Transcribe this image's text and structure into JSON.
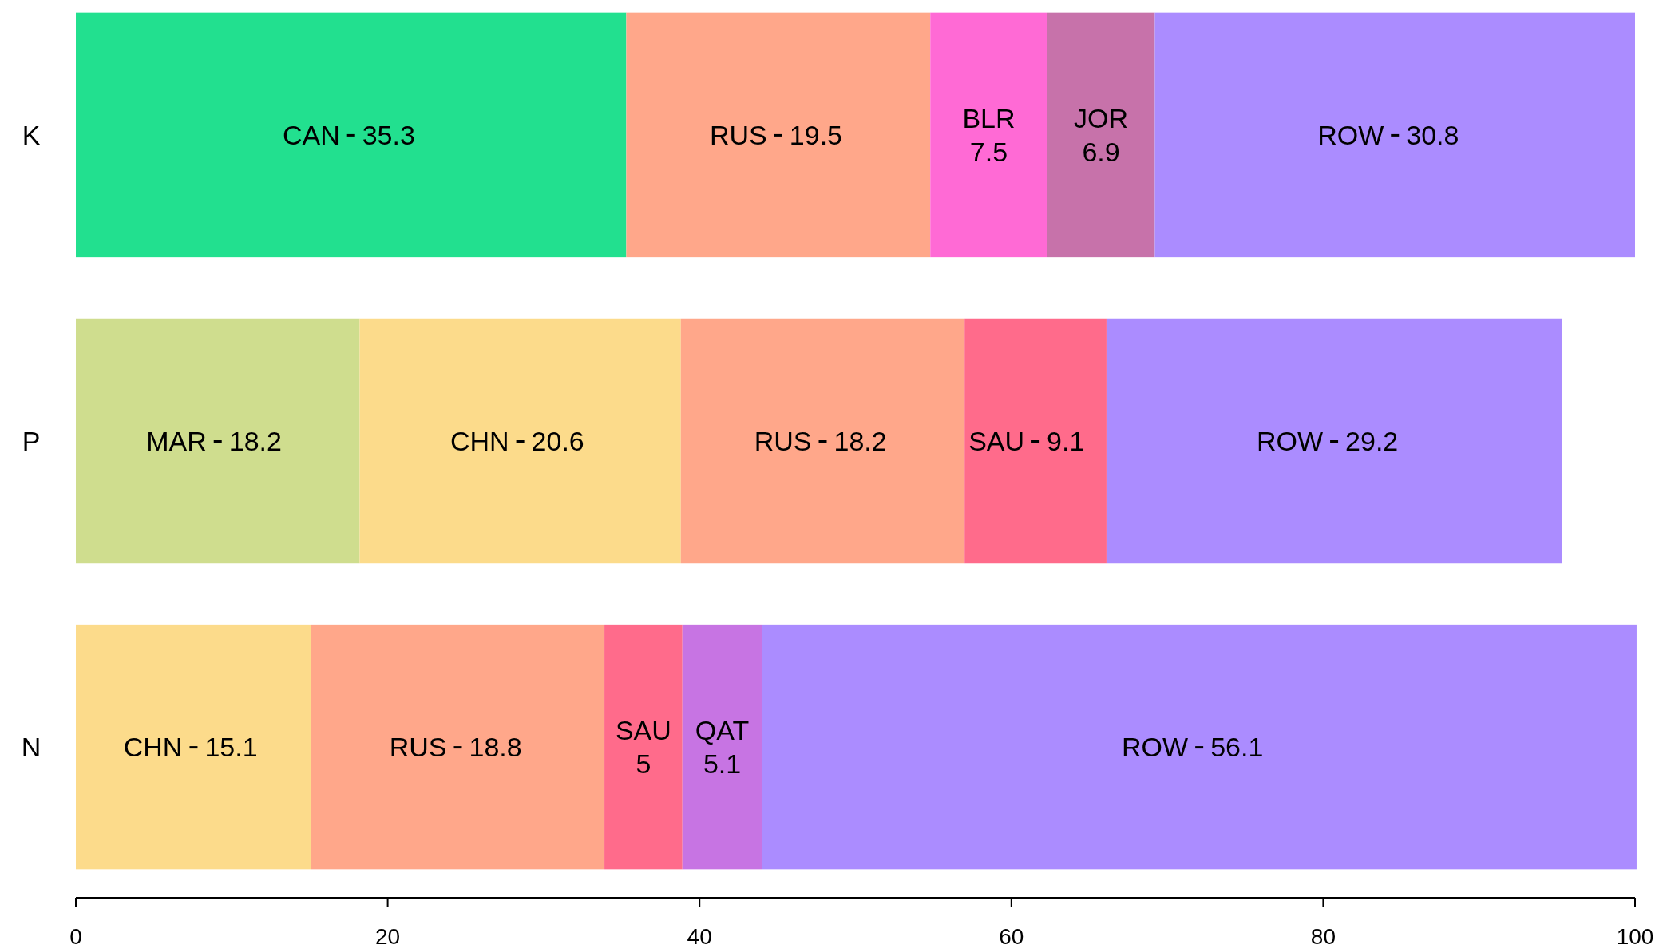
{
  "chart_data": {
    "type": "bar",
    "orientation": "horizontal",
    "stacked": true,
    "data_labels": true,
    "categories": [
      "K",
      "P",
      "N"
    ],
    "series": [
      {
        "name": "CAN",
        "color": "#22e08f",
        "values": [
          35.3,
          null,
          null
        ]
      },
      {
        "name": "MAR",
        "color": "#cfdd8e",
        "values": [
          null,
          18.2,
          null
        ]
      },
      {
        "name": "CHN",
        "color": "#fcdb8b",
        "values": [
          null,
          20.6,
          15.1
        ]
      },
      {
        "name": "RUS",
        "color": "#ffa78a",
        "values": [
          19.5,
          18.2,
          18.8
        ]
      },
      {
        "name": "BLR",
        "color": "#ff6ad5",
        "values": [
          7.5,
          null,
          null
        ]
      },
      {
        "name": "JOR",
        "color": "#c772aa",
        "values": [
          6.9,
          null,
          null
        ]
      },
      {
        "name": "SAU",
        "color": "#ff6b8b",
        "values": [
          null,
          9.1,
          5
        ]
      },
      {
        "name": "QAT",
        "color": "#c774e3",
        "values": [
          null,
          null,
          5.1
        ]
      },
      {
        "name": "ROW",
        "color": "#ab8cff",
        "values": [
          30.8,
          29.2,
          56.1
        ]
      }
    ],
    "xlim": [
      0,
      100
    ],
    "xticks": [
      0,
      20,
      40,
      60,
      80,
      100
    ]
  }
}
